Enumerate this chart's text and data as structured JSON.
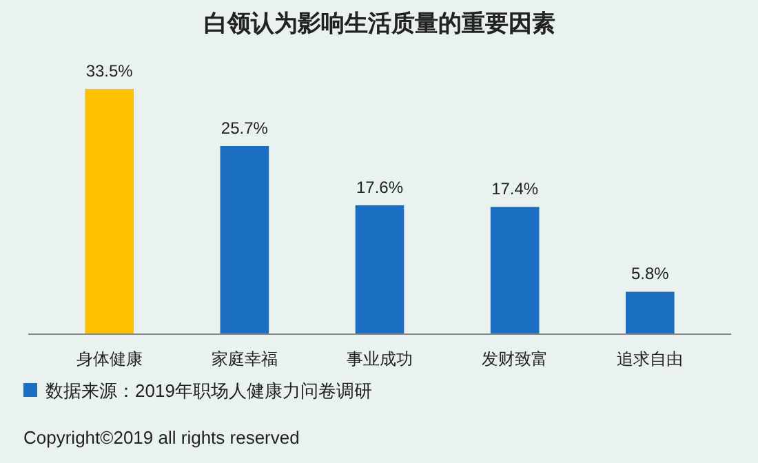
{
  "chart_data": {
    "type": "bar",
    "title": "白领认为影响生活质量的重要因素",
    "categories": [
      "身体健康",
      "家庭幸福",
      "事业成功",
      "发财致富",
      "追求自由"
    ],
    "values": [
      33.5,
      25.7,
      17.6,
      17.4,
      5.8
    ],
    "colors": [
      "#ffc000",
      "#1b6fc2",
      "#1b6fc2",
      "#1b6fc2",
      "#1b6fc2"
    ],
    "value_labels": [
      "33.5%",
      "25.7%",
      "17.6%",
      "17.4%",
      "5.8%"
    ],
    "annotations": [
      "数据来源：2019年职场人健康力问卷调研",
      "Copyright©2019 all rights reserved"
    ],
    "grid": false
  }
}
